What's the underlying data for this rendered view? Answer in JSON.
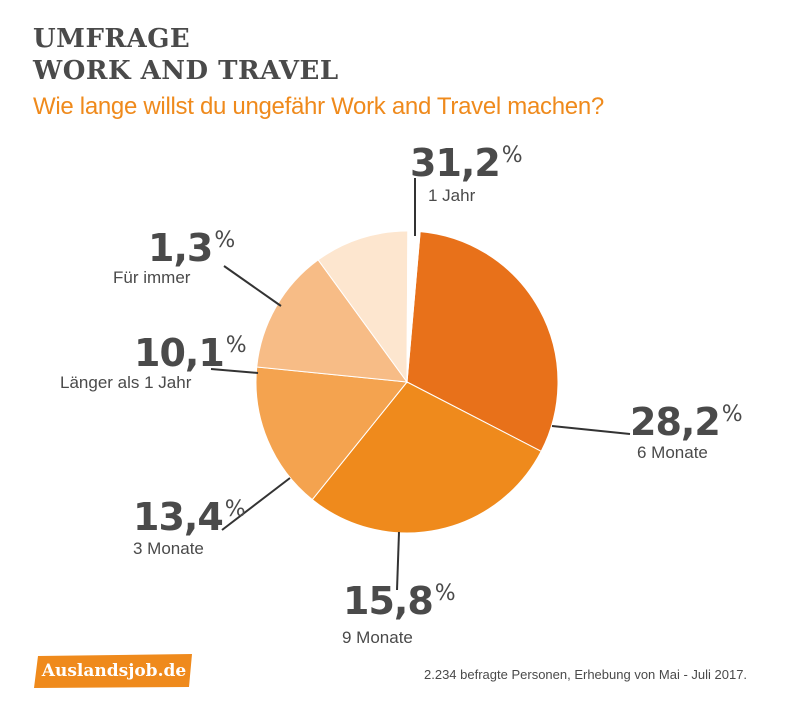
{
  "header": {
    "title_line1": "UMFRAGE",
    "title_line2": "WORK AND TRAVEL",
    "subtitle": "Wie lange willst du ungefähr Work and Travel machen?"
  },
  "chart_data": {
    "type": "pie",
    "title": "UMFRAGE WORK AND TRAVEL",
    "subtitle": "Wie lange willst du ungefähr Work and Travel machen?",
    "unit": "%",
    "slices": [
      {
        "label": "1 Jahr",
        "value": 31.2,
        "display": "31,2",
        "color": "#e8711a"
      },
      {
        "label": "6 Monate",
        "value": 28.2,
        "display": "28,2",
        "color": "#ef8a1c"
      },
      {
        "label": "9 Monate",
        "value": 15.8,
        "display": "15,8",
        "color": "#f4a34f"
      },
      {
        "label": "3 Monate",
        "value": 13.4,
        "display": "13,4",
        "color": "#f7bc86"
      },
      {
        "label": "Länger als 1 Jahr",
        "value": 10.1,
        "display": "10,1",
        "color": "#fde6cf"
      },
      {
        "label": "Für immer",
        "value": 1.3,
        "display": "1,3",
        "color": "#ffffff"
      }
    ],
    "start_label": "1 Jahr",
    "direction": "clockwise"
  },
  "branding": {
    "logo_text": "Auslandsjob.de",
    "logo_color": "#ef8a1c"
  },
  "footnote": "2.234 befragte Personen, Erhebung von Mai - Juli 2017."
}
